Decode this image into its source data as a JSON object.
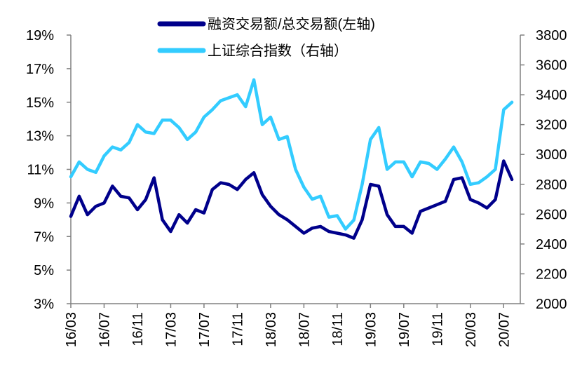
{
  "chart_data": {
    "type": "line",
    "title": "",
    "x_tick_labels": [
      "16/03",
      "16/07",
      "16/11",
      "17/03",
      "17/07",
      "17/11",
      "18/03",
      "18/07",
      "18/11",
      "19/03",
      "19/07",
      "19/11",
      "20/03",
      "20/07"
    ],
    "left_axis": {
      "range": [
        3,
        19
      ],
      "ticks": [
        3,
        5,
        7,
        9,
        11,
        13,
        15,
        17,
        19
      ],
      "tick_labels": [
        "3%",
        "5%",
        "7%",
        "9%",
        "11%",
        "13%",
        "15%",
        "17%",
        "19%"
      ]
    },
    "right_axis": {
      "range": [
        2000,
        3800
      ],
      "ticks": [
        2000,
        2200,
        2400,
        2600,
        2800,
        3000,
        3200,
        3400,
        3600,
        3800
      ],
      "tick_labels": [
        "2000",
        "2200",
        "2400",
        "2600",
        "2800",
        "3000",
        "3200",
        "3400",
        "3600",
        "3800"
      ]
    },
    "legend_position": "top-center",
    "grid": false,
    "series": [
      {
        "name": "融资交易额/总交易额(左轴)",
        "axis": "left",
        "color": "#00008B",
        "values": [
          [
            "2016-03",
            8.2
          ],
          [
            "2016-04",
            9.4
          ],
          [
            "2016-05",
            8.3
          ],
          [
            "2016-06",
            8.8
          ],
          [
            "2016-07",
            9.0
          ],
          [
            "2016-08",
            10.0
          ],
          [
            "2016-09",
            9.4
          ],
          [
            "2016-10",
            9.3
          ],
          [
            "2016-11",
            8.6
          ],
          [
            "2016-12",
            9.2
          ],
          [
            "2017-01",
            10.5
          ],
          [
            "2017-02",
            8.0
          ],
          [
            "2017-03",
            7.3
          ],
          [
            "2017-04",
            8.3
          ],
          [
            "2017-05",
            7.8
          ],
          [
            "2017-06",
            8.6
          ],
          [
            "2017-07",
            8.4
          ],
          [
            "2017-08",
            9.8
          ],
          [
            "2017-09",
            10.2
          ],
          [
            "2017-10",
            10.1
          ],
          [
            "2017-11",
            9.8
          ],
          [
            "2017-12",
            10.4
          ],
          [
            "2018-01",
            10.8
          ],
          [
            "2018-02",
            9.5
          ],
          [
            "2018-03",
            8.8
          ],
          [
            "2018-04",
            8.3
          ],
          [
            "2018-05",
            8.0
          ],
          [
            "2018-06",
            7.6
          ],
          [
            "2018-07",
            7.2
          ],
          [
            "2018-08",
            7.5
          ],
          [
            "2018-09",
            7.6
          ],
          [
            "2018-10",
            7.3
          ],
          [
            "2018-11",
            7.2
          ],
          [
            "2018-12",
            7.1
          ],
          [
            "2019-01",
            6.9
          ],
          [
            "2019-02",
            8.0
          ],
          [
            "2019-03",
            10.1
          ],
          [
            "2019-04",
            10.0
          ],
          [
            "2019-05",
            8.3
          ],
          [
            "2019-06",
            7.6
          ],
          [
            "2019-07",
            7.6
          ],
          [
            "2019-08",
            7.2
          ],
          [
            "2019-09",
            8.5
          ],
          [
            "2019-10",
            8.7
          ],
          [
            "2019-11",
            8.9
          ],
          [
            "2019-12",
            9.1
          ],
          [
            "2020-01",
            10.4
          ],
          [
            "2020-02",
            10.5
          ],
          [
            "2020-03",
            9.2
          ],
          [
            "2020-04",
            9.0
          ],
          [
            "2020-05",
            8.7
          ],
          [
            "2020-06",
            9.2
          ],
          [
            "2020-07",
            11.5
          ],
          [
            "2020-08",
            10.4
          ]
        ]
      },
      {
        "name": "上证综合指数（右轴）",
        "axis": "right",
        "color": "#33CCFF",
        "values": [
          [
            "2016-03",
            2850
          ],
          [
            "2016-04",
            2950
          ],
          [
            "2016-05",
            2900
          ],
          [
            "2016-06",
            2880
          ],
          [
            "2016-07",
            2990
          ],
          [
            "2016-08",
            3050
          ],
          [
            "2016-09",
            3030
          ],
          [
            "2016-10",
            3080
          ],
          [
            "2016-11",
            3200
          ],
          [
            "2016-12",
            3150
          ],
          [
            "2017-01",
            3140
          ],
          [
            "2017-02",
            3230
          ],
          [
            "2017-03",
            3230
          ],
          [
            "2017-04",
            3180
          ],
          [
            "2017-05",
            3100
          ],
          [
            "2017-06",
            3150
          ],
          [
            "2017-07",
            3250
          ],
          [
            "2017-08",
            3300
          ],
          [
            "2017-09",
            3360
          ],
          [
            "2017-10",
            3380
          ],
          [
            "2017-11",
            3400
          ],
          [
            "2017-12",
            3320
          ],
          [
            "2018-01",
            3500
          ],
          [
            "2018-02",
            3200
          ],
          [
            "2018-03",
            3250
          ],
          [
            "2018-04",
            3100
          ],
          [
            "2018-05",
            3120
          ],
          [
            "2018-06",
            2900
          ],
          [
            "2018-07",
            2780
          ],
          [
            "2018-08",
            2700
          ],
          [
            "2018-09",
            2720
          ],
          [
            "2018-10",
            2580
          ],
          [
            "2018-11",
            2590
          ],
          [
            "2018-12",
            2500
          ],
          [
            "2019-01",
            2560
          ],
          [
            "2019-02",
            2800
          ],
          [
            "2019-03",
            3100
          ],
          [
            "2019-04",
            3180
          ],
          [
            "2019-05",
            2900
          ],
          [
            "2019-06",
            2950
          ],
          [
            "2019-07",
            2950
          ],
          [
            "2019-08",
            2850
          ],
          [
            "2019-09",
            2950
          ],
          [
            "2019-10",
            2940
          ],
          [
            "2019-11",
            2900
          ],
          [
            "2019-12",
            2970
          ],
          [
            "2020-01",
            3050
          ],
          [
            "2020-02",
            2950
          ],
          [
            "2020-03",
            2800
          ],
          [
            "2020-04",
            2810
          ],
          [
            "2020-05",
            2850
          ],
          [
            "2020-06",
            2900
          ],
          [
            "2020-07",
            3300
          ],
          [
            "2020-08",
            3350
          ]
        ]
      }
    ]
  }
}
